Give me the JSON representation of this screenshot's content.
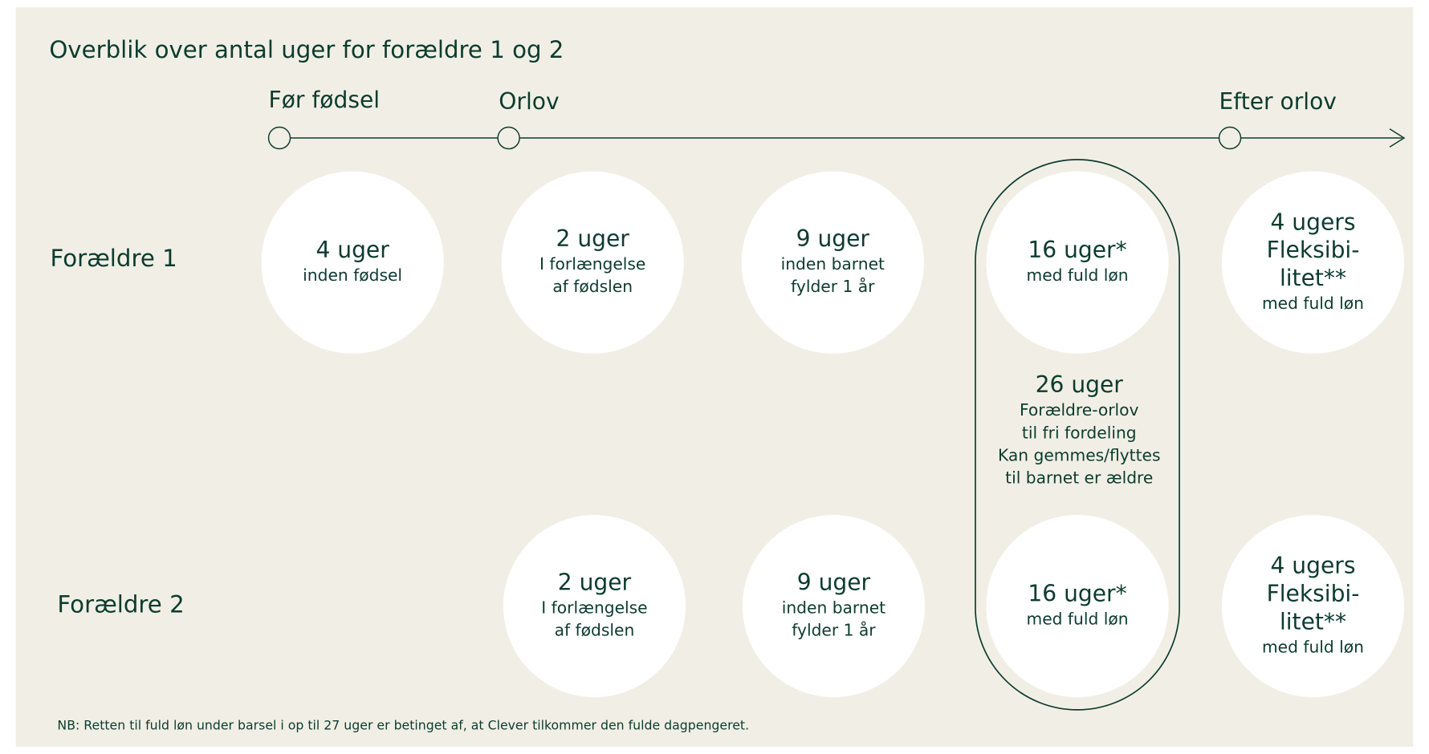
{
  "title": "Overblik over antal uger for forældre 1 og 2",
  "phases": [
    "Før fødsel",
    "Orlov",
    "Efter orlov"
  ],
  "rows": [
    "Forældre 1",
    "Forældre 2"
  ],
  "circles": [
    {
      "heading": [
        "4 uger"
      ],
      "text": [
        "inden fødsel"
      ]
    },
    {
      "heading": [
        "2 uger"
      ],
      "text": [
        "I forlængelse",
        "af fødslen"
      ]
    },
    {
      "heading": [
        "9 uger"
      ],
      "text": [
        "inden barnet",
        "fylder 1 år"
      ]
    },
    {
      "heading": [
        "16 uger*"
      ],
      "text": [
        "med fuld løn"
      ]
    },
    {
      "heading": [
        "4 ugers",
        "Fleksibi-",
        "litet**"
      ],
      "text": [
        "med fuld løn"
      ]
    },
    {
      "heading": [
        "2 uger"
      ],
      "text": [
        "I forlængelse",
        "af fødslen"
      ]
    },
    {
      "heading": [
        "9 uger"
      ],
      "text": [
        "inden barnet",
        "fylder 1 år"
      ]
    },
    {
      "heading": [
        "16 uger*"
      ],
      "text": [
        "med fuld løn"
      ]
    },
    {
      "heading": [
        "4 ugers",
        "Fleksibi-",
        "litet**"
      ],
      "text": [
        "med fuld løn"
      ]
    }
  ],
  "shared": {
    "heading": [
      "26 uger"
    ],
    "text": [
      "Forældre-orlov",
      "til fri fordeling",
      "Kan gemmes/flyttes",
      "til barnet er ældre"
    ]
  },
  "footnote": "NB: Retten til fuld løn under barsel i op til 27 uger er betinget af, at Clever tilkommer den fulde dagpengeret."
}
